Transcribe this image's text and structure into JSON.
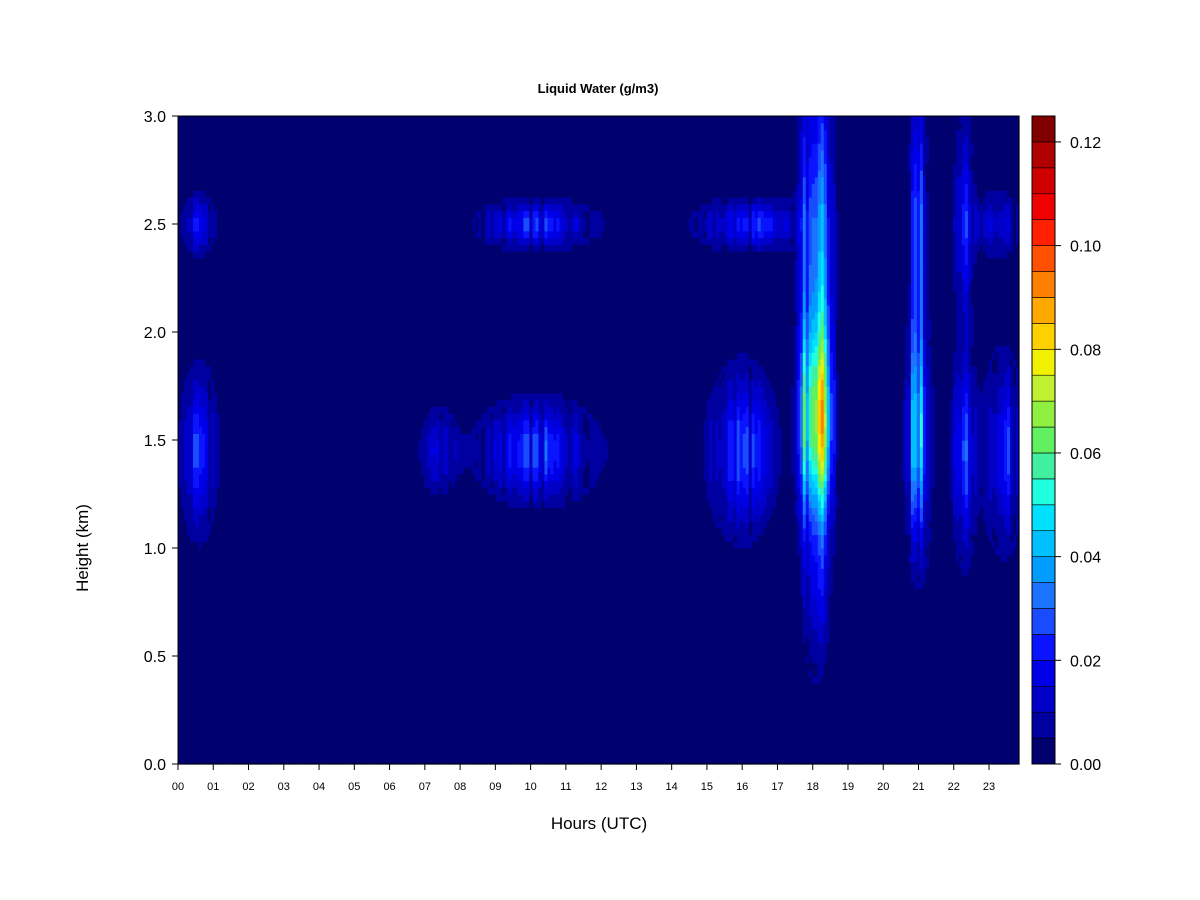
{
  "chart_data": {
    "type": "heatmap",
    "title": "Liquid Water (g/m3)",
    "xlabel": "Hours (UTC)",
    "ylabel": "Height (km)",
    "x_ticks": [
      "00",
      "01",
      "02",
      "03",
      "04",
      "05",
      "06",
      "07",
      "08",
      "09",
      "10",
      "11",
      "12",
      "13",
      "14",
      "15",
      "16",
      "17",
      "18",
      "19",
      "20",
      "21",
      "22",
      "23"
    ],
    "y_ticks": [
      "0.0",
      "0.5",
      "1.0",
      "1.5",
      "2.0",
      "2.5",
      "3.0"
    ],
    "xlim": [
      0,
      23.85
    ],
    "ylim": [
      0,
      3.0
    ],
    "colorbar": {
      "range": [
        0,
        0.125
      ],
      "levels": 25,
      "tick_labels": [
        "0.00",
        "0.02",
        "0.04",
        "0.06",
        "0.08",
        "0.10",
        "0.12"
      ],
      "tick_values": [
        0,
        0.02,
        0.04,
        0.06,
        0.08,
        0.1,
        0.12
      ],
      "colors": [
        "#00006e",
        "#0000a0",
        "#0000c8",
        "#0000e8",
        "#0a14ff",
        "#1a4cff",
        "#1a74ff",
        "#009cff",
        "#00c0ff",
        "#00e0ff",
        "#20ffe0",
        "#40f0a0",
        "#60f060",
        "#90f040",
        "#c0f030",
        "#f0f000",
        "#ffd000",
        "#ffa800",
        "#ff8000",
        "#ff5000",
        "#ff2000",
        "#f00000",
        "#d00000",
        "#b00000",
        "#800000"
      ]
    },
    "background_value": 0.002,
    "features": [
      {
        "x_center": 0.6,
        "x_width": 0.55,
        "y_center": 1.45,
        "y_width": 0.4,
        "peak": 0.02
      },
      {
        "x_center": 0.6,
        "x_width": 0.5,
        "y_center": 2.5,
        "y_width": 0.15,
        "peak": 0.016
      },
      {
        "x_center": 7.4,
        "x_width": 0.6,
        "y_center": 1.45,
        "y_width": 0.22,
        "peak": 0.012
      },
      {
        "x_center": 10.2,
        "x_width": 1.8,
        "y_center": 1.45,
        "y_width": 0.25,
        "peak": 0.02
      },
      {
        "x_center": 10.2,
        "x_width": 1.8,
        "y_center": 2.5,
        "y_width": 0.12,
        "peak": 0.018
      },
      {
        "x_center": 16.0,
        "x_width": 1.0,
        "y_center": 1.45,
        "y_width": 0.4,
        "peak": 0.022
      },
      {
        "x_center": 16.2,
        "x_width": 1.6,
        "y_center": 2.5,
        "y_width": 0.13,
        "peak": 0.018
      },
      {
        "x_center": 18.1,
        "x_width": 0.45,
        "y_center": 1.55,
        "y_width": 0.55,
        "peak": 0.085
      },
      {
        "x_center": 18.1,
        "x_width": 0.45,
        "y_center": 2.3,
        "y_width": 1.1,
        "peak": 0.05
      },
      {
        "x_center": 18.1,
        "x_width": 0.35,
        "y_center": 0.8,
        "y_width": 0.4,
        "peak": 0.018
      },
      {
        "x_center": 21.0,
        "x_width": 0.35,
        "y_center": 1.5,
        "y_width": 0.55,
        "peak": 0.04
      },
      {
        "x_center": 21.0,
        "x_width": 0.25,
        "y_center": 2.4,
        "y_width": 0.8,
        "peak": 0.03
      },
      {
        "x_center": 22.3,
        "x_width": 0.35,
        "y_center": 1.45,
        "y_width": 0.5,
        "peak": 0.025
      },
      {
        "x_center": 22.3,
        "x_width": 0.3,
        "y_center": 2.5,
        "y_width": 0.5,
        "peak": 0.02
      },
      {
        "x_center": 23.4,
        "x_width": 0.6,
        "y_center": 1.45,
        "y_width": 0.45,
        "peak": 0.022
      },
      {
        "x_center": 23.2,
        "x_width": 0.7,
        "y_center": 2.5,
        "y_width": 0.15,
        "peak": 0.016
      }
    ]
  }
}
